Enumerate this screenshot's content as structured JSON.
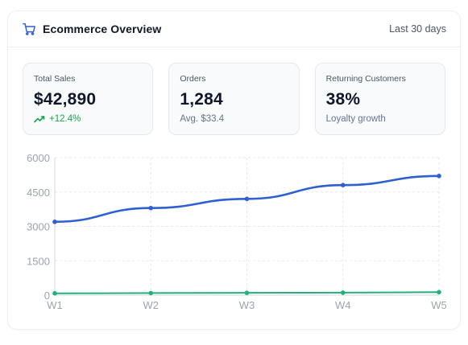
{
  "header": {
    "title": "Ecommerce Overview",
    "range": "Last 30 days"
  },
  "kpis": [
    {
      "label": "Total Sales",
      "value": "$42,890",
      "sub": "+12.4%",
      "sub_color": "#16a34a"
    },
    {
      "label": "Orders",
      "value": "1,284",
      "sub": "Avg. $33.4"
    },
    {
      "label": "Returning Customers",
      "value": "38%",
      "sub": "Loyalty growth"
    }
  ],
  "colors": {
    "sales_line": "#2f5fd3",
    "orders_line": "#22b07d",
    "grid": "#e5e7eb",
    "axis_text": "#9ca3af"
  },
  "chart_data": {
    "type": "line",
    "categories": [
      "W1",
      "W2",
      "W3",
      "W4",
      "W5"
    ],
    "series": [
      {
        "values": [
          3200,
          3800,
          4200,
          4800,
          5200
        ],
        "color": "#2f5fd3"
      },
      {
        "values": [
          80,
          90,
          100,
          110,
          130
        ],
        "color": "#22b07d"
      }
    ],
    "ylim": [
      0,
      6000
    ],
    "yticks": [
      0,
      1500,
      3000,
      4500,
      6000
    ],
    "grid": true,
    "legend": "none"
  }
}
